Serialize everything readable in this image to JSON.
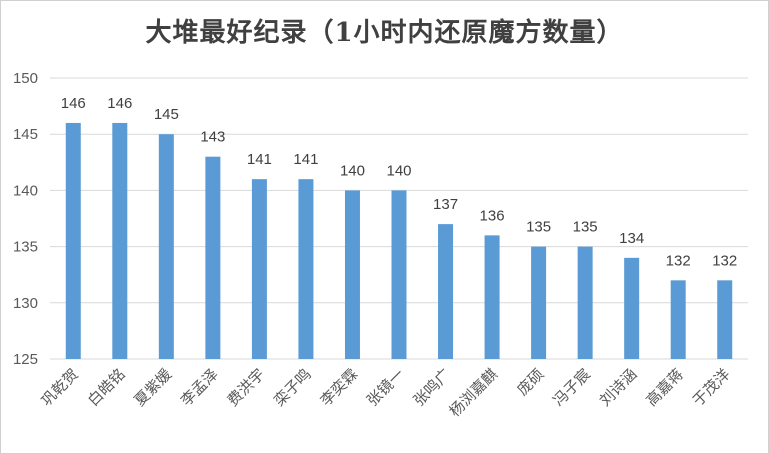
{
  "chart_data": {
    "type": "bar",
    "title": "大堆最好纪录（1小时内还原魔方数量）",
    "xlabel": "",
    "ylabel": "",
    "ylim": [
      125,
      150
    ],
    "yticks": [
      125,
      130,
      135,
      140,
      145,
      150
    ],
    "grid": true,
    "categories": [
      "巩乾贺",
      "白皓铭",
      "夏紫媛",
      "李孟泽",
      "费洪宇",
      "栾子鸣",
      "李奕霖",
      "张镜一",
      "张鸣广",
      "杨浏嘉麒",
      "庞硕",
      "冯子宸",
      "刘诗涵",
      "高嘉蒋",
      "于茂洋"
    ],
    "values": [
      146,
      146,
      145,
      143,
      141,
      141,
      140,
      140,
      137,
      136,
      135,
      135,
      134,
      132,
      132
    ],
    "bar_color": "#5b9bd5",
    "grid_color": "#d9d9d9"
  }
}
